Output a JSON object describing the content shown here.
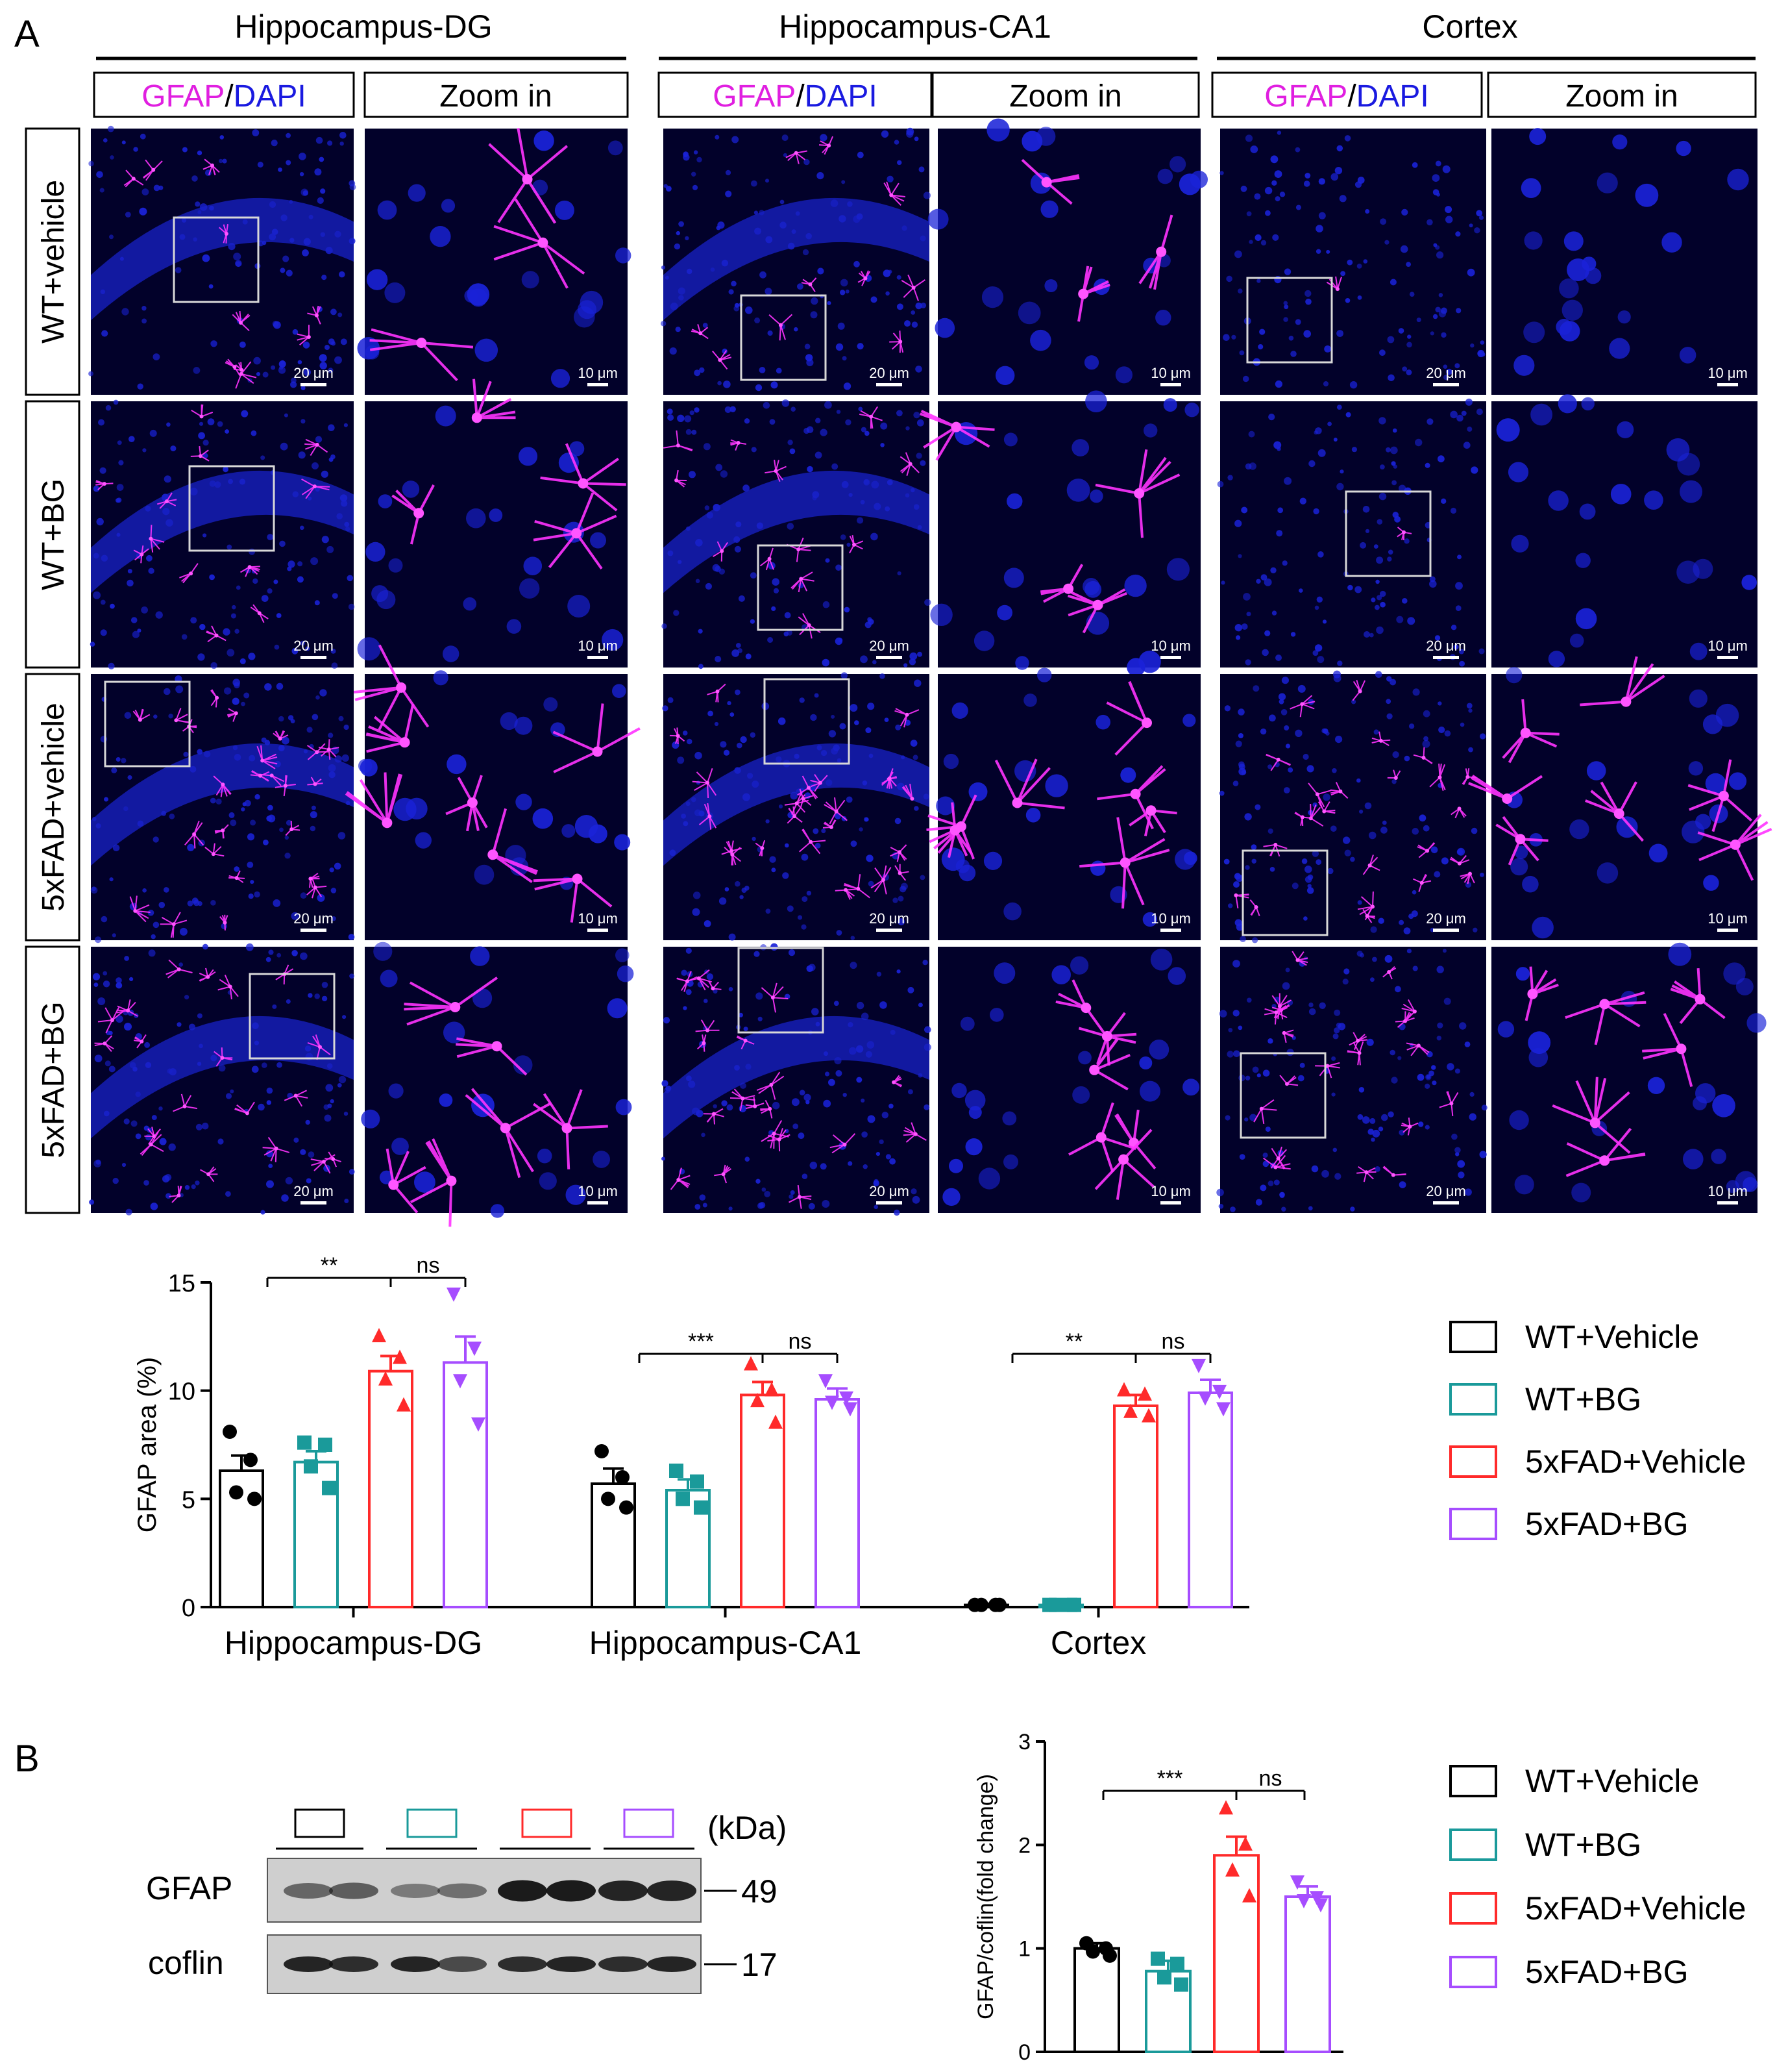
{
  "panel_a": {
    "letter": "A",
    "regions": [
      "Hippocampus-DG",
      "Hippocampus-CA1",
      "Cortex"
    ],
    "header_gfap": "GFAP",
    "header_slash": "/",
    "header_dapi": "DAPI",
    "header_zoom": "Zoom in",
    "rows": [
      "WT+vehicle",
      "WT+BG",
      "5xFAD+vehicle",
      "5xFAD+BG"
    ],
    "scale_main": "20 μm",
    "scale_zoom": "10 μm"
  },
  "legend": {
    "items": [
      "WT+Vehicle",
      "WT+BG",
      "5xFAD+Vehicle",
      "5xFAD+BG"
    ]
  },
  "panel_b": {
    "letter": "B",
    "kda": "(kDa)",
    "band1": "GFAP",
    "band2": "coflin",
    "mw1": "49",
    "mw2": "17"
  },
  "colors": {
    "wt_vehicle": "#000000",
    "wt_bg": "#1a9a9a",
    "fad_vehicle": "#ff2a2a",
    "fad_bg": "#a64dff",
    "dapi_blue": "#0a0fa0",
    "gfap_magenta": "#ff33ff"
  },
  "chart_data": [
    {
      "type": "bar",
      "ylabel": "GFAP  area  (%)",
      "ylim": [
        0,
        15
      ],
      "yticks": [
        "0",
        "5",
        "10",
        "15"
      ],
      "categories": [
        "Hippocampus-DG",
        "Hippocampus-CA1",
        "Cortex"
      ],
      "series": [
        {
          "name": "WT+Vehicle",
          "values": [
            6.3,
            5.7,
            0.1
          ],
          "sem": [
            0.7,
            0.7,
            0.05
          ],
          "points": [
            [
              8.1,
              6.8,
              5.3,
              5.0
            ],
            [
              7.2,
              6.0,
              5.0,
              4.6
            ],
            [
              0.1,
              0.1,
              0.1,
              0.1
            ]
          ]
        },
        {
          "name": "WT+BG",
          "values": [
            6.7,
            5.4,
            0.1
          ],
          "sem": [
            0.5,
            0.5,
            0.05
          ],
          "points": [
            [
              7.6,
              7.5,
              6.5,
              5.5
            ],
            [
              6.3,
              5.8,
              5.0,
              4.6
            ],
            [
              0.1,
              0.1,
              0.1,
              0.1
            ]
          ]
        },
        {
          "name": "5xFAD+Vehicle",
          "values": [
            10.9,
            9.8,
            9.3
          ],
          "sem": [
            0.7,
            0.6,
            0.5
          ],
          "points": [
            [
              12.5,
              11.5,
              10.5,
              9.3
            ],
            [
              11.2,
              10.0,
              9.5,
              8.5
            ],
            [
              10.0,
              9.8,
              9.0,
              8.8
            ]
          ]
        },
        {
          "name": "5xFAD+BG",
          "values": [
            11.3,
            9.6,
            9.9
          ],
          "sem": [
            1.2,
            0.5,
            0.6
          ],
          "points": [
            [
              14.5,
              12.0,
              10.5,
              8.5
            ],
            [
              10.5,
              9.7,
              9.5,
              9.2
            ],
            [
              11.2,
              10.0,
              9.7,
              9.2
            ]
          ]
        }
      ],
      "annotations": [
        "**",
        "ns",
        "***",
        "ns",
        "**",
        "ns"
      ]
    },
    {
      "type": "bar",
      "ylabel": "GFAP/coflin(fold change)",
      "ylim": [
        0,
        3
      ],
      "yticks": [
        "0",
        "1",
        "2",
        "3"
      ],
      "categories": [
        "WT+Vehicle",
        "WT+BG",
        "5xFAD+Vehicle",
        "5xFAD+BG"
      ],
      "values": [
        1.0,
        0.78,
        1.9,
        1.5
      ],
      "sem": [
        0.05,
        0.1,
        0.18,
        0.1
      ],
      "points": [
        [
          1.05,
          1.0,
          0.97,
          0.93
        ],
        [
          0.9,
          0.85,
          0.72,
          0.65
        ],
        [
          2.35,
          2.0,
          1.75,
          1.5
        ],
        [
          1.65,
          1.5,
          1.47,
          1.43
        ]
      ],
      "annotations": [
        "***",
        "ns"
      ]
    }
  ]
}
